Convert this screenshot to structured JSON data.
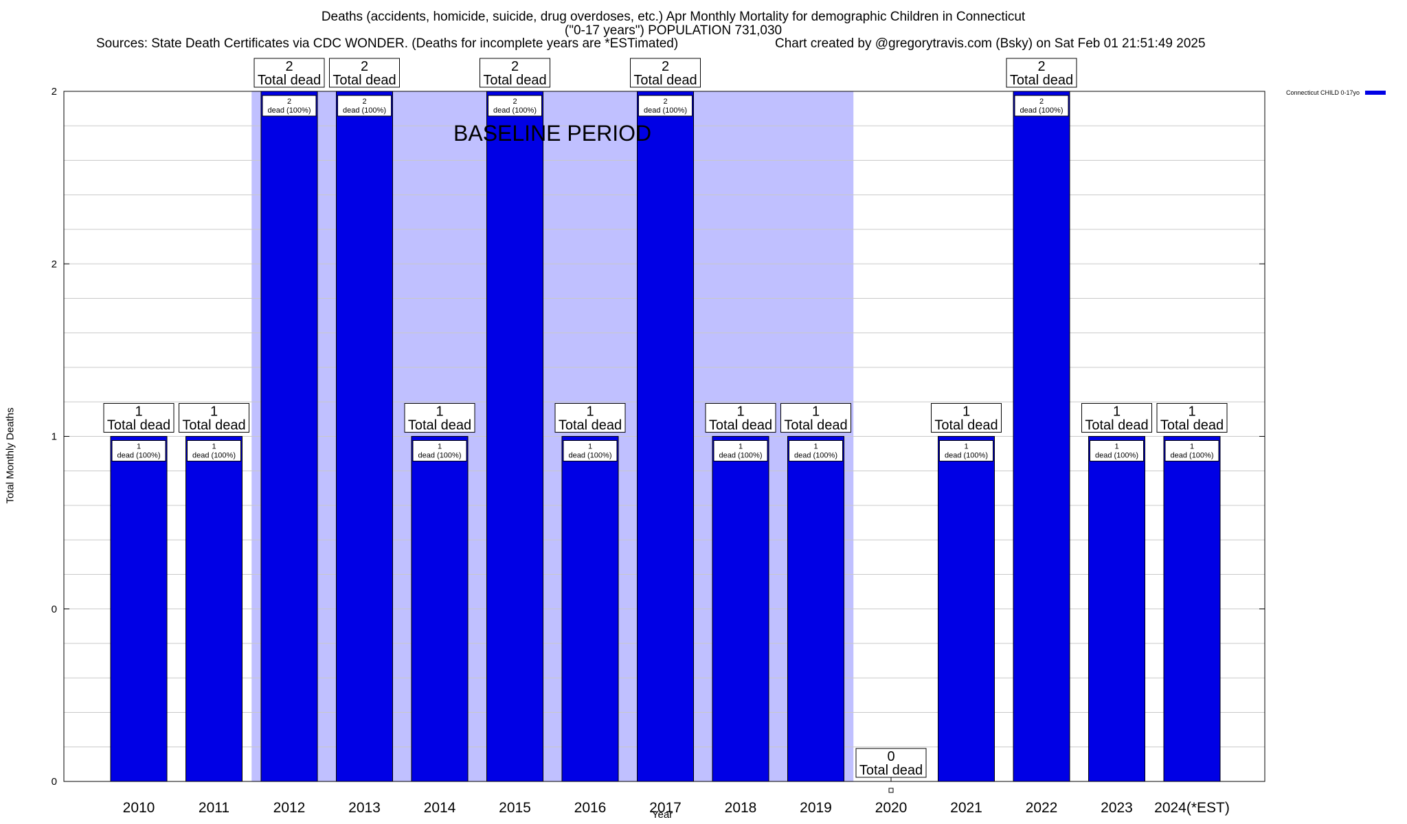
{
  "title_line1": "Deaths (accidents, homicide, suicide, drug overdoses, etc.) Apr Monthly Mortality for demographic Children in Connecticut",
  "title_line2": "(\"0-17 years\") POPULATION 731,030",
  "subtitle_left": "Sources: State Death Certificates via CDC WONDER. (Deaths for incomplete years are *ESTimated)",
  "subtitle_right": "Chart created by @gregorytravis.com (Bsky) on Sat Feb 01 21:51:49 2025",
  "chart_data": {
    "type": "bar",
    "xlabel": "Year",
    "ylabel": "Total Monthly Deaths",
    "ylim": [
      0,
      2
    ],
    "y_tick_labels": [
      "0",
      "0",
      "1",
      "2",
      "2"
    ],
    "grid": true,
    "legend_position": "top-right",
    "categories": [
      "2010",
      "2011",
      "2012",
      "2013",
      "2014",
      "2015",
      "2016",
      "2017",
      "2018",
      "2019",
      "2020",
      "2021",
      "2022",
      "2023",
      "2024(*EST)"
    ],
    "series": [
      {
        "name": "Connecticut CHILD 0-17yo",
        "color": "#0000e5",
        "values": [
          1,
          1,
          2,
          2,
          1,
          2,
          1,
          2,
          1,
          1,
          0,
          1,
          2,
          1,
          1
        ]
      }
    ],
    "total_labels": [
      "1",
      "1",
      "2",
      "2",
      "1",
      "2",
      "1",
      "2",
      "1",
      "1",
      "0",
      "1",
      "2",
      "1",
      "1"
    ],
    "total_caption": "Total dead",
    "bar_labels": [
      "1",
      "1",
      "2",
      "2",
      "1",
      "2",
      "1",
      "2",
      "1",
      "1",
      "",
      "1",
      "2",
      "1",
      "1"
    ],
    "bar_caption": "dead (100%)",
    "baseline_period": {
      "label": "BASELINE PERIOD",
      "start": "2012",
      "end": "2019",
      "color": "#c0c0ff"
    }
  }
}
